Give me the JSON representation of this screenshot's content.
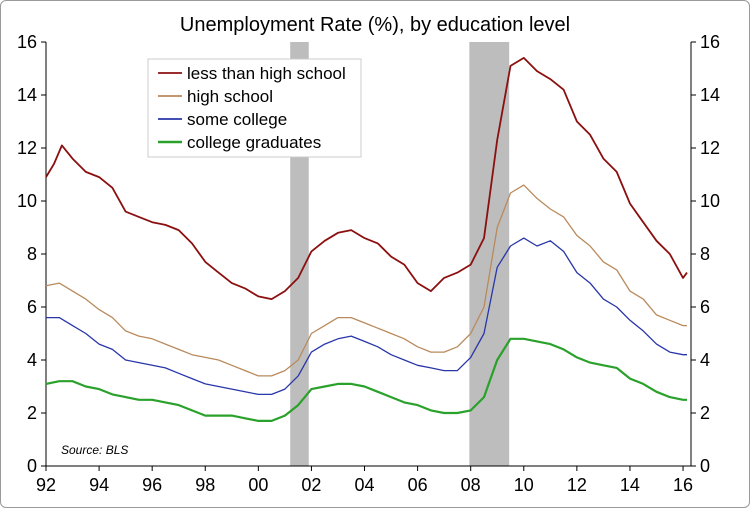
{
  "chart_data": {
    "type": "line",
    "title": "Unemployment Rate (%), by education level",
    "source": "Source: BLS",
    "xlim": [
      1992,
      2016.3
    ],
    "ylim": [
      0,
      16
    ],
    "y_ticks": [
      0,
      2,
      4,
      6,
      8,
      10,
      12,
      14,
      16
    ],
    "x_ticks": [
      {
        "value": 1992,
        "label": "92"
      },
      {
        "value": 1994,
        "label": "94"
      },
      {
        "value": 1996,
        "label": "96"
      },
      {
        "value": 1998,
        "label": "98"
      },
      {
        "value": 2000,
        "label": "00"
      },
      {
        "value": 2002,
        "label": "02"
      },
      {
        "value": 2004,
        "label": "04"
      },
      {
        "value": 2006,
        "label": "06"
      },
      {
        "value": 2008,
        "label": "08"
      },
      {
        "value": 2010,
        "label": "10"
      },
      {
        "value": 2012,
        "label": "12"
      },
      {
        "value": 2014,
        "label": "14"
      },
      {
        "value": 2016,
        "label": "16"
      }
    ],
    "recessions": [
      {
        "start": 2001.2,
        "end": 2001.9
      },
      {
        "start": 2007.95,
        "end": 2009.45
      }
    ],
    "grid": false,
    "legend_position": "top-left",
    "series": [
      {
        "name": "less than high school",
        "color": "#8b0f0f",
        "x": [
          1992.0,
          1992.3,
          1992.6,
          1993.0,
          1993.5,
          1994.0,
          1994.5,
          1995.0,
          1995.5,
          1996.0,
          1996.5,
          1997.0,
          1997.5,
          1998.0,
          1998.5,
          1999.0,
          1999.5,
          2000.0,
          2000.5,
          2001.0,
          2001.5,
          2002.0,
          2002.5,
          2003.0,
          2003.5,
          2004.0,
          2004.5,
          2005.0,
          2005.5,
          2006.0,
          2006.5,
          2007.0,
          2007.5,
          2008.0,
          2008.5,
          2009.0,
          2009.5,
          2010.0,
          2010.5,
          2011.0,
          2011.5,
          2012.0,
          2012.5,
          2013.0,
          2013.5,
          2014.0,
          2014.5,
          2015.0,
          2015.5,
          2016.0,
          2016.15
        ],
        "y": [
          10.9,
          11.4,
          12.1,
          11.6,
          11.1,
          10.9,
          10.5,
          9.6,
          9.4,
          9.2,
          9.1,
          8.9,
          8.4,
          7.7,
          7.3,
          6.9,
          6.7,
          6.4,
          6.3,
          6.6,
          7.1,
          8.1,
          8.5,
          8.8,
          8.9,
          8.6,
          8.4,
          7.9,
          7.6,
          6.9,
          6.6,
          7.1,
          7.3,
          7.6,
          8.6,
          12.3,
          15.1,
          15.4,
          14.9,
          14.6,
          14.2,
          13.0,
          12.5,
          11.6,
          11.1,
          9.9,
          9.2,
          8.5,
          8.0,
          7.1,
          7.3
        ]
      },
      {
        "name": "high school",
        "color": "#b98a5c",
        "x": [
          1992.0,
          1992.5,
          1993.0,
          1993.5,
          1994.0,
          1994.5,
          1995.0,
          1995.5,
          1996.0,
          1996.5,
          1997.0,
          1997.5,
          1998.0,
          1998.5,
          1999.0,
          1999.5,
          2000.0,
          2000.5,
          2001.0,
          2001.5,
          2002.0,
          2002.5,
          2003.0,
          2003.5,
          2004.0,
          2004.5,
          2005.0,
          2005.5,
          2006.0,
          2006.5,
          2007.0,
          2007.5,
          2008.0,
          2008.5,
          2009.0,
          2009.5,
          2010.0,
          2010.5,
          2011.0,
          2011.5,
          2012.0,
          2012.5,
          2013.0,
          2013.5,
          2014.0,
          2014.5,
          2015.0,
          2015.5,
          2016.0,
          2016.15
        ],
        "y": [
          6.8,
          6.9,
          6.6,
          6.3,
          5.9,
          5.6,
          5.1,
          4.9,
          4.8,
          4.6,
          4.4,
          4.2,
          4.1,
          4.0,
          3.8,
          3.6,
          3.4,
          3.4,
          3.6,
          4.0,
          5.0,
          5.3,
          5.6,
          5.6,
          5.4,
          5.2,
          5.0,
          4.8,
          4.5,
          4.3,
          4.3,
          4.5,
          5.0,
          6.0,
          9.0,
          10.3,
          10.6,
          10.1,
          9.7,
          9.4,
          8.7,
          8.3,
          7.7,
          7.4,
          6.6,
          6.3,
          5.7,
          5.5,
          5.3,
          5.3
        ]
      },
      {
        "name": "some college",
        "color": "#2836a8",
        "x": [
          1992.0,
          1992.5,
          1993.0,
          1993.5,
          1994.0,
          1994.5,
          1995.0,
          1995.5,
          1996.0,
          1996.5,
          1997.0,
          1997.5,
          1998.0,
          1998.5,
          1999.0,
          1999.5,
          2000.0,
          2000.5,
          2001.0,
          2001.5,
          2002.0,
          2002.5,
          2003.0,
          2003.5,
          2004.0,
          2004.5,
          2005.0,
          2005.5,
          2006.0,
          2006.5,
          2007.0,
          2007.5,
          2008.0,
          2008.5,
          2009.0,
          2009.5,
          2010.0,
          2010.5,
          2011.0,
          2011.5,
          2012.0,
          2012.5,
          2013.0,
          2013.5,
          2014.0,
          2014.5,
          2015.0,
          2015.5,
          2016.0,
          2016.15
        ],
        "y": [
          5.6,
          5.6,
          5.3,
          5.0,
          4.6,
          4.4,
          4.0,
          3.9,
          3.8,
          3.7,
          3.5,
          3.3,
          3.1,
          3.0,
          2.9,
          2.8,
          2.7,
          2.7,
          2.9,
          3.4,
          4.3,
          4.6,
          4.8,
          4.9,
          4.7,
          4.5,
          4.2,
          4.0,
          3.8,
          3.7,
          3.6,
          3.6,
          4.1,
          5.0,
          7.5,
          8.3,
          8.6,
          8.3,
          8.5,
          8.1,
          7.3,
          6.9,
          6.3,
          6.0,
          5.5,
          5.1,
          4.6,
          4.3,
          4.2,
          4.2
        ]
      },
      {
        "name": "college graduates",
        "color": "#2aa12a",
        "x": [
          1992.0,
          1992.5,
          1993.0,
          1993.5,
          1994.0,
          1994.5,
          1995.0,
          1995.5,
          1996.0,
          1996.5,
          1997.0,
          1997.5,
          1998.0,
          1998.5,
          1999.0,
          1999.5,
          2000.0,
          2000.5,
          2001.0,
          2001.5,
          2002.0,
          2002.5,
          2003.0,
          2003.5,
          2004.0,
          2004.5,
          2005.0,
          2005.5,
          2006.0,
          2006.5,
          2007.0,
          2007.5,
          2008.0,
          2008.5,
          2009.0,
          2009.5,
          2010.0,
          2010.5,
          2011.0,
          2011.5,
          2012.0,
          2012.5,
          2013.0,
          2013.5,
          2014.0,
          2014.5,
          2015.0,
          2015.5,
          2016.0,
          2016.15
        ],
        "y": [
          3.1,
          3.2,
          3.2,
          3.0,
          2.9,
          2.7,
          2.6,
          2.5,
          2.5,
          2.4,
          2.3,
          2.1,
          1.9,
          1.9,
          1.9,
          1.8,
          1.7,
          1.7,
          1.9,
          2.3,
          2.9,
          3.0,
          3.1,
          3.1,
          3.0,
          2.8,
          2.6,
          2.4,
          2.3,
          2.1,
          2.0,
          2.0,
          2.1,
          2.6,
          4.0,
          4.8,
          4.8,
          4.7,
          4.6,
          4.4,
          4.1,
          3.9,
          3.8,
          3.7,
          3.3,
          3.1,
          2.8,
          2.6,
          2.5,
          2.5
        ]
      }
    ]
  }
}
